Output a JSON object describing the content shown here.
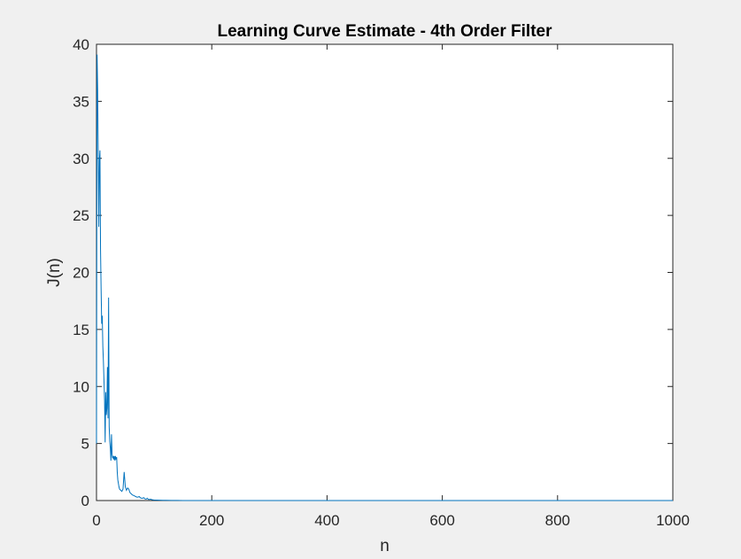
{
  "chart_data": {
    "type": "line",
    "title": "Learning Curve Estimate - 4th Order Filter",
    "xlabel": "n",
    "ylabel": "J(n)",
    "xlim": [
      0,
      1000
    ],
    "ylim": [
      0,
      40
    ],
    "xticks": [
      0,
      200,
      400,
      600,
      800,
      1000
    ],
    "yticks": [
      0,
      5,
      10,
      15,
      20,
      25,
      30,
      35,
      40
    ],
    "grid": false,
    "colors": {
      "line": "#0072bd",
      "figure_bg": "#f0f0f0",
      "axes_bg": "#ffffff"
    },
    "series": [
      {
        "x": [
          0,
          1,
          2,
          3,
          4,
          5,
          6,
          7,
          8,
          9,
          10,
          11,
          12,
          13,
          14,
          15,
          16,
          17,
          18,
          19,
          20,
          21,
          22,
          23,
          24,
          25,
          26,
          27,
          28,
          29,
          30,
          31,
          32,
          33,
          34,
          35,
          36,
          37,
          38,
          39,
          40,
          42,
          44,
          46,
          48,
          50,
          52,
          54,
          56,
          58,
          60,
          62,
          64,
          66,
          68,
          70,
          72,
          74,
          76,
          78,
          80,
          82,
          84,
          86,
          88,
          90,
          92,
          94,
          96,
          98,
          100,
          105,
          110,
          115,
          120,
          130,
          140,
          150,
          170,
          200,
          250,
          300,
          400,
          500,
          600,
          700,
          800,
          900,
          1000
        ],
        "y": [
          5,
          39.1,
          36,
          30.5,
          24,
          29.8,
          30.7,
          22,
          18.5,
          15.5,
          16.2,
          13.5,
          12.2,
          10.5,
          8.8,
          5.1,
          9.5,
          7.5,
          8.1,
          11.7,
          7.2,
          17.8,
          6.5,
          5.2,
          4.6,
          3.5,
          5.8,
          4.1,
          3.7,
          3.9,
          3.6,
          3.9,
          3.5,
          3.9,
          3.6,
          3.8,
          2.5,
          1.8,
          1.5,
          1.2,
          1.0,
          0.9,
          0.8,
          1.0,
          2.5,
          1.2,
          0.9,
          1.1,
          1.0,
          0.7,
          0.6,
          0.5,
          0.45,
          0.4,
          0.35,
          0.3,
          0.3,
          0.35,
          0.25,
          0.2,
          0.2,
          0.25,
          0.15,
          0.12,
          0.2,
          0.1,
          0.1,
          0.12,
          0.08,
          0.06,
          0.05,
          0.04,
          0.03,
          0.02,
          0.02,
          0.01,
          0.01,
          0.005,
          0.003,
          0.002,
          0.001,
          0.001,
          0.001,
          0.001,
          0.001,
          0.001,
          0.001,
          0.001,
          0.001
        ]
      }
    ]
  }
}
